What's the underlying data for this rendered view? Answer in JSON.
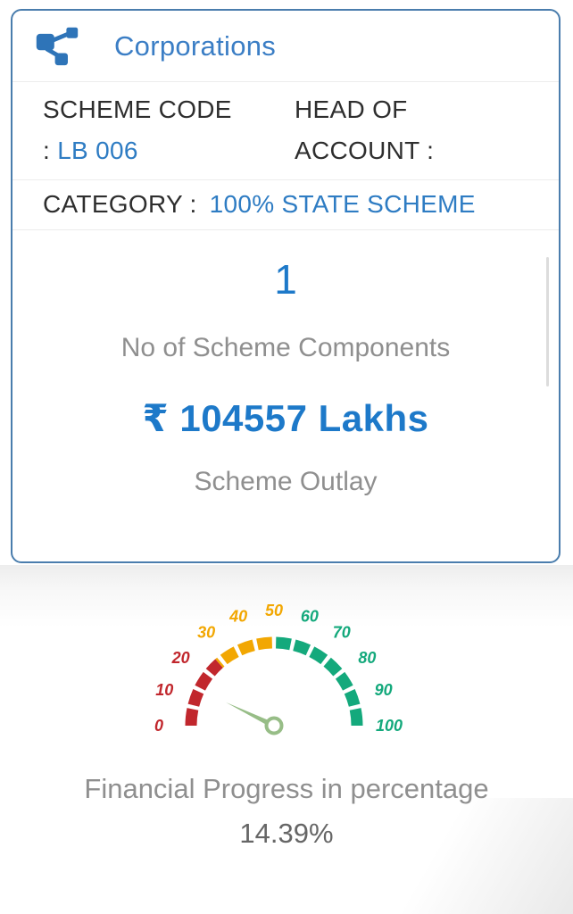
{
  "card": {
    "title": "Corporations",
    "scheme_code": {
      "line1": "SCHEME CODE",
      "separator": ":",
      "value": "LB 006"
    },
    "head_of_account": {
      "line1": "HEAD OF",
      "line2": "ACCOUNT :"
    },
    "category": {
      "label": "CATEGORY :",
      "value": "100% STATE SCHEME"
    },
    "stats": {
      "components_count": "1",
      "components_label": "No of Scheme Components",
      "outlay_value": "₹ 104557 Lakhs",
      "outlay_label": "Scheme Outlay"
    }
  },
  "gauge_section": {
    "caption": "Financial Progress in percentage",
    "value_text": "14.39%"
  },
  "chart_data": {
    "type": "gauge",
    "title": "Financial Progress in percentage",
    "value": 14.39,
    "value_label": "14.39%",
    "min": 0,
    "max": 100,
    "segments": 14,
    "tick_labels": [
      0,
      10,
      20,
      30,
      40,
      50,
      60,
      70,
      80,
      90,
      100
    ],
    "bands": [
      {
        "from": 0,
        "to": 27,
        "color": "#c1272d"
      },
      {
        "from": 27,
        "to": 50,
        "color": "#f2a702"
      },
      {
        "from": 50,
        "to": 100,
        "color": "#14a97c"
      }
    ],
    "needle_color": "#97bd87"
  },
  "colors": {
    "card_border": "#4a7dad",
    "accent_blue": "#2e7cc3",
    "stat_blue": "#1d79c9",
    "muted_gray": "#8f8f8f",
    "dark_text": "#2e2e2e"
  }
}
